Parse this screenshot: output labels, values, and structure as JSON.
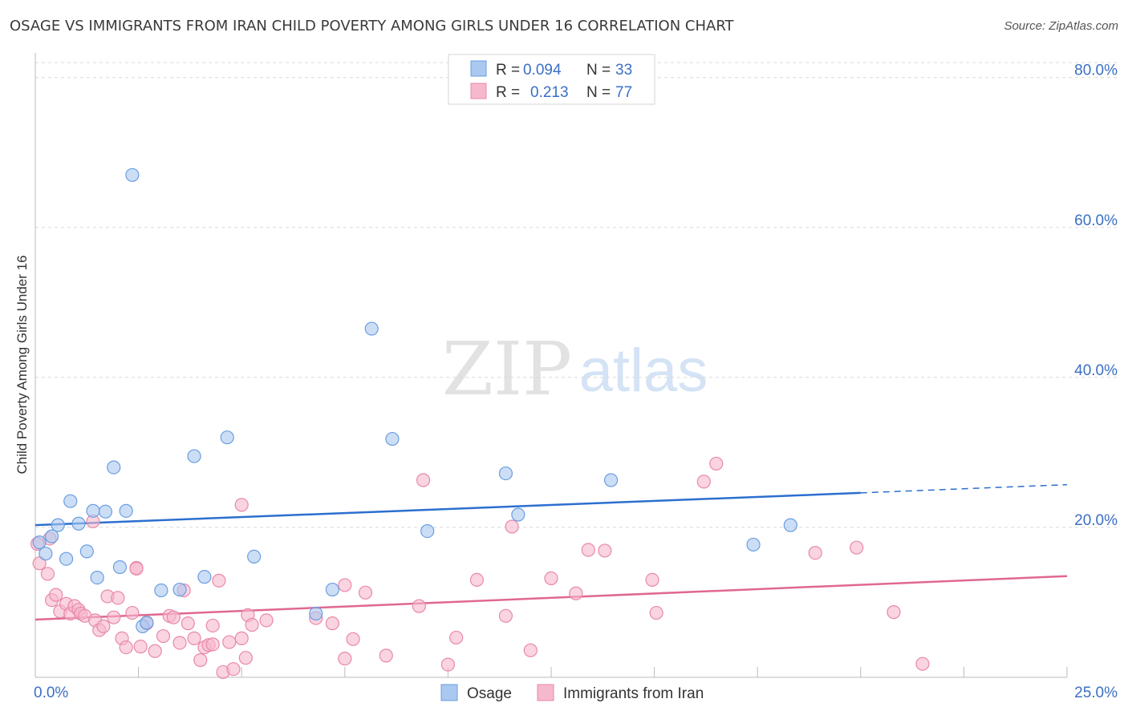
{
  "title": "OSAGE VS IMMIGRANTS FROM IRAN CHILD POVERTY AMONG GIRLS UNDER 16 CORRELATION CHART",
  "source": "Source: ZipAtlas.com",
  "watermark": {
    "zip": "ZIP",
    "atlas": "atlas"
  },
  "colors": {
    "osage_fill": "#aac8f0",
    "osage_stroke": "#6a9ee0",
    "osage_line": "#2c6fcf",
    "iran_fill": "#f6b8cc",
    "iran_stroke": "#e889a8",
    "iran_line": "#e06890",
    "tick": "#3b6fc4",
    "grid": "#d8d8d8"
  },
  "legend_top": {
    "rows": [
      {
        "r_label": "R = ",
        "r_value": "0.094",
        "n_label": "N = ",
        "n_value": "33"
      },
      {
        "r_label": "R = ",
        "r_value": "0.213",
        "n_label": "N = ",
        "n_value": "77"
      }
    ]
  },
  "chart_data": {
    "type": "scatter",
    "title": "OSAGE VS IMMIGRANTS FROM IRAN CHILD POVERTY AMONG GIRLS UNDER 16 CORRELATION CHART",
    "xlabel": "",
    "ylabel": "Child Poverty Among Girls Under 16",
    "xlim": [
      0,
      25
    ],
    "ylim": [
      0,
      82
    ],
    "x_tick_labels": [
      "0.0%",
      "25.0%"
    ],
    "y_ticks": [
      20,
      40,
      60,
      80
    ],
    "y_tick_labels": [
      "20.0%",
      "40.0%",
      "60.0%",
      "80.0%"
    ],
    "grid": true,
    "legend_position": "top-center",
    "series": [
      {
        "name": "Osage",
        "r": 0.094,
        "n": 33,
        "trend": {
          "x0": 0,
          "y0": 20.3,
          "x1": 20,
          "y1": 24.6,
          "dash_to_x": 25,
          "dash_to_y": 25.7
        },
        "points": [
          [
            0.1,
            18.0
          ],
          [
            0.25,
            16.5
          ],
          [
            0.4,
            18.8
          ],
          [
            0.55,
            20.3
          ],
          [
            0.75,
            15.8
          ],
          [
            0.85,
            23.5
          ],
          [
            1.05,
            20.5
          ],
          [
            1.25,
            16.8
          ],
          [
            1.4,
            22.2
          ],
          [
            1.5,
            13.3
          ],
          [
            1.7,
            22.1
          ],
          [
            1.9,
            28.0
          ],
          [
            2.05,
            14.7
          ],
          [
            2.2,
            22.2
          ],
          [
            2.35,
            67.0
          ],
          [
            2.6,
            6.8
          ],
          [
            2.7,
            7.3
          ],
          [
            3.05,
            11.6
          ],
          [
            3.5,
            11.7
          ],
          [
            3.85,
            29.5
          ],
          [
            4.1,
            13.4
          ],
          [
            4.65,
            32.0
          ],
          [
            5.3,
            16.1
          ],
          [
            6.8,
            8.5
          ],
          [
            7.2,
            11.7
          ],
          [
            8.15,
            46.5
          ],
          [
            8.65,
            31.8
          ],
          [
            9.5,
            19.5
          ],
          [
            11.4,
            27.2
          ],
          [
            11.7,
            21.7
          ],
          [
            13.95,
            26.3
          ],
          [
            17.4,
            17.7
          ],
          [
            18.3,
            20.3
          ]
        ]
      },
      {
        "name": "Immigrants from Iran",
        "r": 0.213,
        "n": 77,
        "trend": {
          "x0": 0,
          "y0": 7.7,
          "x1": 25,
          "y1": 13.5
        },
        "points": [
          [
            0.05,
            17.8
          ],
          [
            0.1,
            15.2
          ],
          [
            0.3,
            13.8
          ],
          [
            0.35,
            18.5
          ],
          [
            0.4,
            10.3
          ],
          [
            0.5,
            11.0
          ],
          [
            0.6,
            8.8
          ],
          [
            0.75,
            9.8
          ],
          [
            0.85,
            8.5
          ],
          [
            0.95,
            9.5
          ],
          [
            1.05,
            9.0
          ],
          [
            1.1,
            8.5
          ],
          [
            1.2,
            8.2
          ],
          [
            1.4,
            20.8
          ],
          [
            1.45,
            7.6
          ],
          [
            1.55,
            6.3
          ],
          [
            1.65,
            6.8
          ],
          [
            1.75,
            10.8
          ],
          [
            1.9,
            8.0
          ],
          [
            2.0,
            10.6
          ],
          [
            2.1,
            5.2
          ],
          [
            2.2,
            4.0
          ],
          [
            2.35,
            8.6
          ],
          [
            2.45,
            14.6
          ],
          [
            2.55,
            4.1
          ],
          [
            2.7,
            7.2
          ],
          [
            2.9,
            3.5
          ],
          [
            3.1,
            5.5
          ],
          [
            3.25,
            8.2
          ],
          [
            3.35,
            8.0
          ],
          [
            3.5,
            4.6
          ],
          [
            3.6,
            11.6
          ],
          [
            3.7,
            7.2
          ],
          [
            3.85,
            5.2
          ],
          [
            4.0,
            2.3
          ],
          [
            4.1,
            4.0
          ],
          [
            4.2,
            4.3
          ],
          [
            4.3,
            6.9
          ],
          [
            4.45,
            12.9
          ],
          [
            4.55,
            0.7
          ],
          [
            4.7,
            4.7
          ],
          [
            4.8,
            1.1
          ],
          [
            5.0,
            5.2
          ],
          [
            5.1,
            2.6
          ],
          [
            5.15,
            8.3
          ],
          [
            5.25,
            7.0
          ],
          [
            5.0,
            23.0
          ],
          [
            5.6,
            7.6
          ],
          [
            6.8,
            7.9
          ],
          [
            7.5,
            12.3
          ],
          [
            7.5,
            2.5
          ],
          [
            7.2,
            7.2
          ],
          [
            7.7,
            5.1
          ],
          [
            8.0,
            11.3
          ],
          [
            8.5,
            2.9
          ],
          [
            9.3,
            9.5
          ],
          [
            9.4,
            26.3
          ],
          [
            10.0,
            1.7
          ],
          [
            10.2,
            5.3
          ],
          [
            10.7,
            13.0
          ],
          [
            11.4,
            8.2
          ],
          [
            11.55,
            20.1
          ],
          [
            12.0,
            3.6
          ],
          [
            12.5,
            13.2
          ],
          [
            13.1,
            11.2
          ],
          [
            13.4,
            17.0
          ],
          [
            13.8,
            16.9
          ],
          [
            14.95,
            13.0
          ],
          [
            15.05,
            8.6
          ],
          [
            16.2,
            26.1
          ],
          [
            16.5,
            28.5
          ],
          [
            18.9,
            16.6
          ],
          [
            19.9,
            17.3
          ],
          [
            20.8,
            8.7
          ],
          [
            21.5,
            1.8
          ],
          [
            2.45,
            14.5
          ],
          [
            4.3,
            4.4
          ]
        ]
      }
    ]
  },
  "bottom_legend": {
    "osage": "Osage",
    "iran": "Immigrants from Iran"
  }
}
